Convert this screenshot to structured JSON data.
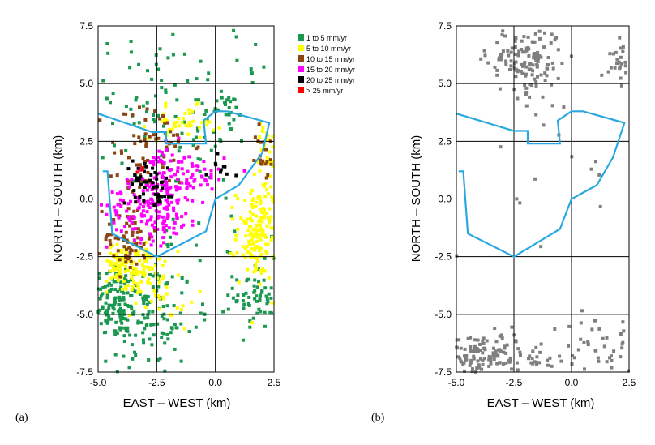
{
  "chart_data": [
    {
      "type": "scatter",
      "panel_label": "(a)",
      "xlabel": "EAST – WEST  (km)",
      "ylabel": "NORTH – SOUTH  (km)",
      "xlim": [
        -5.0,
        2.5
      ],
      "ylim": [
        -7.5,
        7.5
      ],
      "x_ticks": [
        "-5.0",
        "-2.5",
        "0.0",
        "2.5"
      ],
      "y_ticks": [
        "7.5",
        "5.0",
        "2.5",
        "0.0",
        "-2.5",
        "-5.0",
        "-7.5"
      ],
      "grid": true,
      "legend": [
        {
          "label": "1 to 5 mm/yr",
          "color": "#1a9850"
        },
        {
          "label": "5 to 10 mm/yr",
          "color": "#ffff00"
        },
        {
          "label": "10 to 15 mm/yr",
          "color": "#8b4513"
        },
        {
          "label": "15 to 20 mm/yr",
          "color": "#ff00ff"
        },
        {
          "label": "20 to 25 mm/yr",
          "color": "#000000"
        },
        {
          "label": "> 25 mm/yr",
          "color": "#ff0000"
        }
      ],
      "boundary_color": "#29a8e0",
      "boundary": [
        [
          -5.0,
          3.7
        ],
        [
          -2.7,
          2.9
        ],
        [
          -2.1,
          2.9
        ],
        [
          -2.1,
          2.4
        ],
        [
          -0.4,
          2.4
        ],
        [
          -0.5,
          3.4
        ],
        [
          0.0,
          3.8
        ],
        [
          0.5,
          3.8
        ],
        [
          2.3,
          3.3
        ],
        [
          2.0,
          2.0
        ],
        [
          1.0,
          0.6
        ],
        [
          0.0,
          0.0
        ],
        [
          -0.4,
          -1.4
        ],
        [
          -2.5,
          -2.5
        ],
        [
          -4.4,
          -1.5
        ],
        [
          -4.6,
          1.2
        ],
        [
          -4.8,
          1.2
        ]
      ],
      "clusters": [
        {
          "level": 0,
          "cx": -4.2,
          "cy": -4.3,
          "sx": 0.55,
          "sy": 0.8,
          "n": 110
        },
        {
          "level": 0,
          "cx": -3.0,
          "cy": -5.2,
          "sx": 1.1,
          "sy": 1.3,
          "n": 120
        },
        {
          "level": 0,
          "cx": 1.8,
          "cy": -4.2,
          "sx": 0.5,
          "sy": 0.7,
          "n": 70
        },
        {
          "level": 0,
          "cx": -2.2,
          "cy": 4.3,
          "sx": 1.6,
          "sy": 1.4,
          "n": 70
        },
        {
          "level": 0,
          "cx": 0.3,
          "cy": 3.9,
          "sx": 0.4,
          "sy": 0.3,
          "n": 25
        },
        {
          "level": 0,
          "cx": -0.8,
          "cy": 0.0,
          "sx": 2.3,
          "sy": 5.5,
          "n": 90
        },
        {
          "level": 1,
          "cx": -3.4,
          "cy": -3.0,
          "sx": 0.6,
          "sy": 0.55,
          "n": 110
        },
        {
          "level": 1,
          "cx": 1.8,
          "cy": -1.5,
          "sx": 0.45,
          "sy": 1.0,
          "n": 150
        },
        {
          "level": 1,
          "cx": -1.4,
          "cy": 3.3,
          "sx": 0.7,
          "sy": 0.35,
          "n": 45
        },
        {
          "level": 1,
          "cx": 2.2,
          "cy": 1.5,
          "sx": 0.25,
          "sy": 1.0,
          "n": 35
        },
        {
          "level": 1,
          "cx": -4.2,
          "cy": -2.5,
          "sx": 0.4,
          "sy": 0.5,
          "n": 30
        },
        {
          "level": 1,
          "cx": -2.2,
          "cy": -4.4,
          "sx": 0.7,
          "sy": 0.6,
          "n": 25
        },
        {
          "level": 2,
          "cx": -3.7,
          "cy": -1.6,
          "sx": 0.5,
          "sy": 0.8,
          "n": 70
        },
        {
          "level": 2,
          "cx": -2.8,
          "cy": 2.4,
          "sx": 0.9,
          "sy": 0.9,
          "n": 55
        },
        {
          "level": 2,
          "cx": 2.1,
          "cy": 2.0,
          "sx": 0.2,
          "sy": 0.6,
          "n": 20
        },
        {
          "level": 2,
          "cx": -3.4,
          "cy": 0.8,
          "sx": 0.6,
          "sy": 0.5,
          "n": 20
        },
        {
          "level": 3,
          "cx": -2.6,
          "cy": -0.3,
          "sx": 1.0,
          "sy": 0.75,
          "n": 170
        },
        {
          "level": 3,
          "cx": -1.0,
          "cy": 1.0,
          "sx": 0.7,
          "sy": 0.5,
          "n": 55
        },
        {
          "level": 3,
          "cx": -2.0,
          "cy": 1.6,
          "sx": 0.4,
          "sy": 0.4,
          "n": 25
        },
        {
          "level": 4,
          "cx": -3.0,
          "cy": 0.8,
          "sx": 0.5,
          "sy": 0.4,
          "n": 40
        },
        {
          "level": 4,
          "cx": -2.3,
          "cy": 0.1,
          "sx": 0.2,
          "sy": 0.15,
          "n": 12
        },
        {
          "level": 4,
          "cx": 0.2,
          "cy": 1.4,
          "sx": 0.3,
          "sy": 0.3,
          "n": 10
        },
        {
          "level": 5,
          "cx": -3.2,
          "cy": 1.3,
          "sx": 0.12,
          "sy": 0.12,
          "n": 3
        }
      ]
    },
    {
      "type": "scatter",
      "panel_label": "(b)",
      "xlabel": "EAST – WEST  (km)",
      "ylabel": "NORTH – SOUTH  (km)",
      "xlim": [
        -5.0,
        2.5
      ],
      "ylim": [
        -7.5,
        7.5
      ],
      "x_ticks": [
        "-5.0",
        "-2.5",
        "0.0",
        "2.5"
      ],
      "y_ticks": [
        "7.5",
        "5.0",
        "2.5",
        "0.0",
        "-2.5",
        "-5.0",
        "-7.5"
      ],
      "grid": true,
      "point_color": "#7f7f7f",
      "boundary_color": "#29a8e0",
      "boundary": [
        [
          -5.0,
          3.7
        ],
        [
          -2.5,
          2.95
        ],
        [
          -1.9,
          2.95
        ],
        [
          -1.9,
          2.4
        ],
        [
          -0.5,
          2.4
        ],
        [
          -0.6,
          3.4
        ],
        [
          0.0,
          3.8
        ],
        [
          0.5,
          3.8
        ],
        [
          2.3,
          3.3
        ],
        [
          1.8,
          1.8
        ],
        [
          1.1,
          0.6
        ],
        [
          0.0,
          0.0
        ],
        [
          -0.5,
          -1.3
        ],
        [
          -2.5,
          -2.5
        ],
        [
          -4.5,
          -1.5
        ],
        [
          -4.7,
          1.2
        ],
        [
          -4.9,
          1.2
        ]
      ],
      "clusters": [
        {
          "cx": -2.0,
          "cy": 6.0,
          "sx": 0.8,
          "sy": 0.7,
          "n": 140
        },
        {
          "cx": 2.2,
          "cy": 6.1,
          "sx": 0.3,
          "sy": 0.4,
          "n": 25
        },
        {
          "cx": -3.8,
          "cy": -6.8,
          "sx": 0.8,
          "sy": 0.5,
          "n": 120
        },
        {
          "cx": 1.2,
          "cy": -6.5,
          "sx": 0.8,
          "sy": 0.7,
          "n": 50
        },
        {
          "cx": -0.5,
          "cy": 1.2,
          "sx": 2.8,
          "sy": 5.5,
          "n": 30
        },
        {
          "cx": -1.5,
          "cy": -6.8,
          "sx": 0.6,
          "sy": 0.4,
          "n": 25
        }
      ]
    }
  ]
}
